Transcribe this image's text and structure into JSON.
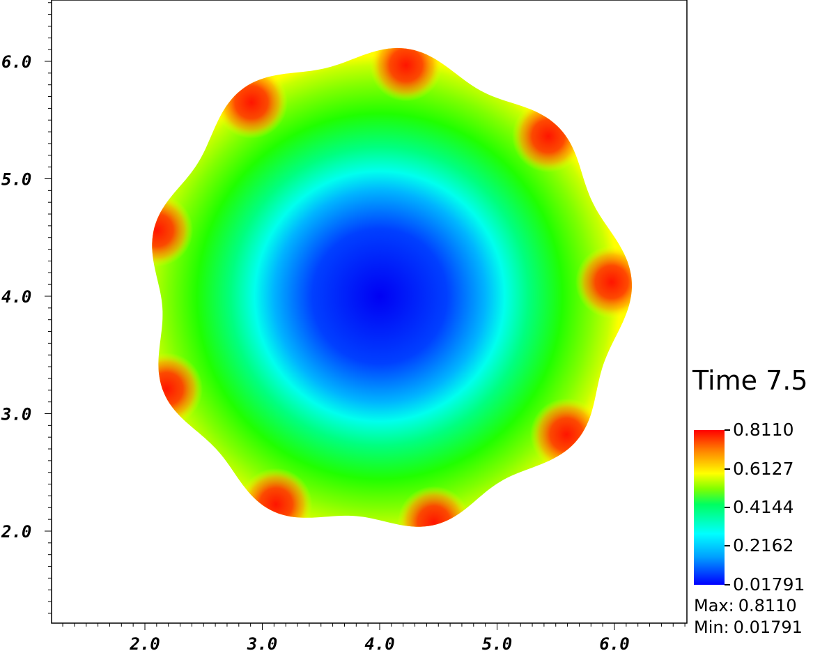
{
  "chart_data": {
    "type": "heatmap",
    "title": "",
    "xlabel": "",
    "ylabel": "",
    "xlim": [
      1.2,
      6.6
    ],
    "ylim": [
      1.2,
      6.5
    ],
    "x_ticks": [
      "2.0",
      "3.0",
      "4.0",
      "5.0",
      "6.0"
    ],
    "y_ticks": [
      "2.0",
      "3.0",
      "4.0",
      "5.0",
      "6.0"
    ],
    "x_tick_values": [
      2.0,
      3.0,
      4.0,
      5.0,
      6.0
    ],
    "y_tick_values": [
      2.0,
      3.0,
      4.0,
      5.0,
      6.0
    ],
    "field": {
      "center": [
        4.0,
        4.0
      ],
      "boundary_radius": 2.0,
      "lobes": 9,
      "value_at_center": 0.01791,
      "value_at_lobe_tips": 0.811
    },
    "colorbar": {
      "title": "Time 7.5",
      "tick_labels": [
        "0.8110",
        "0.6127",
        "0.4144",
        "0.2162",
        "0.01791"
      ],
      "tick_values": [
        0.811,
        0.6127,
        0.4144,
        0.2162,
        0.01791
      ],
      "min": 0.01791,
      "max": 0.811,
      "colormap": [
        "#0000ff",
        "#00ffff",
        "#00ff00",
        "#ffff00",
        "#ff0000"
      ]
    },
    "stats": {
      "max_label": "Max:",
      "max_value": "0.8110",
      "min_label": "Min:",
      "min_value": "0.01791"
    }
  }
}
